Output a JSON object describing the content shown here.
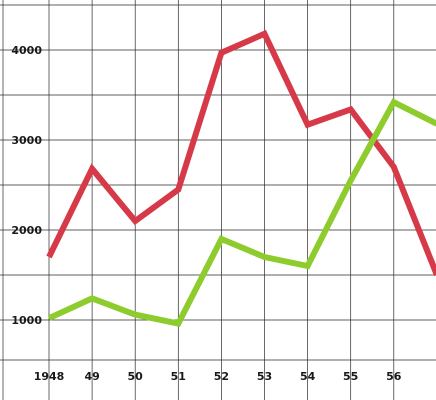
{
  "chart_data": {
    "type": "line",
    "x": [
      "1948",
      "49",
      "50",
      "51",
      "52",
      "53",
      "54",
      "55",
      "56",
      ""
    ],
    "ylim": [
      550,
      4500
    ],
    "y_ticks": [
      "1000",
      "2000",
      "3000",
      "4000"
    ],
    "y_tick_values": [
      1000,
      2000,
      3000,
      4000
    ],
    "grid": true,
    "series": [
      {
        "color": "#d63a49",
        "values": [
          1700,
          2680,
          2100,
          2450,
          3970,
          4180,
          3170,
          3340,
          2700,
          1500
        ]
      },
      {
        "color": "#8ecc2e",
        "values": [
          1020,
          1240,
          1060,
          960,
          1900,
          1700,
          1600,
          2550,
          3420,
          3180
        ]
      }
    ]
  }
}
